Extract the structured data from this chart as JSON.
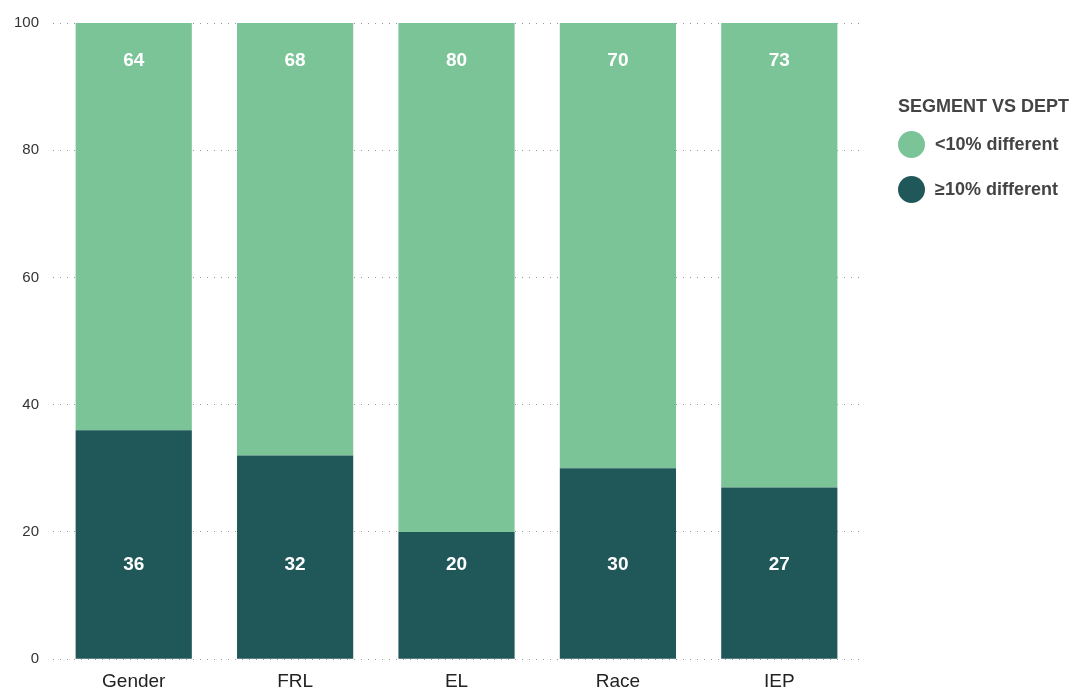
{
  "chart_data": {
    "type": "bar",
    "stacked": true,
    "legend_title": "SEGMENT VS DEPT",
    "legend": "right",
    "grid": "y",
    "data_labels": true,
    "categories": [
      "Gender",
      "FRL",
      "EL",
      "Race",
      "IEP"
    ],
    "series": [
      {
        "name": "≥10% different",
        "color": "#20585a",
        "values": [
          36,
          32,
          20,
          30,
          27
        ]
      },
      {
        "name": "<10% different",
        "color": "#7bc498",
        "values": [
          64,
          68,
          80,
          70,
          73
        ]
      }
    ],
    "ylim": [
      0,
      100
    ],
    "yticks": [
      0,
      20,
      40,
      60,
      80,
      100
    ]
  }
}
